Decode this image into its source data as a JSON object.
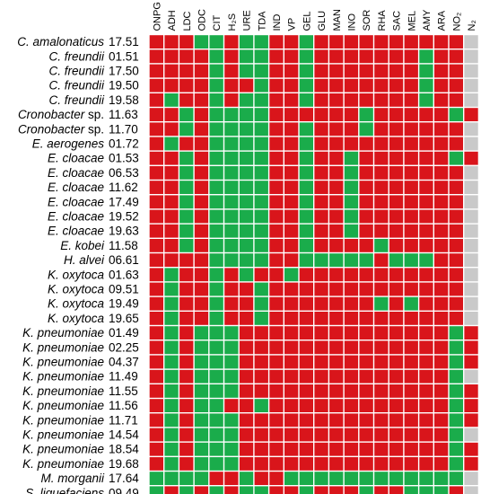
{
  "chart_data": {
    "type": "heatmap",
    "columns": [
      "ONPG",
      "ADH",
      "LDC",
      "ODC",
      "CIT",
      "H₂S",
      "URE",
      "TDA",
      "IND",
      "VP",
      "GEL",
      "GLU",
      "MAN",
      "INO",
      "SOR",
      "RHA",
      "SAC",
      "MEL",
      "AMY",
      "ARA",
      "NO₂",
      "N₂"
    ],
    "rows": [
      {
        "species": "C. amalonaticus",
        "code": "17.51"
      },
      {
        "species": "C. freundii",
        "code": "01.51"
      },
      {
        "species": "C. freundii",
        "code": "17.50"
      },
      {
        "species": "C. freundii",
        "code": "19.50"
      },
      {
        "species": "C. freundii",
        "code": "19.58"
      },
      {
        "species": "Cronobacter",
        "suffix": " sp.",
        "code": "11.63"
      },
      {
        "species": "Cronobacter",
        "suffix": " sp.",
        "code": "11.70"
      },
      {
        "species": "E. aerogenes",
        "code": "01.72"
      },
      {
        "species": "E. cloacae",
        "code": "01.53"
      },
      {
        "species": "E. cloacae",
        "code": "06.53"
      },
      {
        "species": "E. cloacae",
        "code": "11.62"
      },
      {
        "species": "E. cloacae",
        "code": "17.49"
      },
      {
        "species": "E. cloacae",
        "code": "19.52"
      },
      {
        "species": "E. cloacae",
        "code": "19.63"
      },
      {
        "species": "E. kobei",
        "code": "11.58"
      },
      {
        "species": "H. alvei",
        "code": "06.61"
      },
      {
        "species": "K. oxytoca",
        "code": "01.63"
      },
      {
        "species": "K. oxytoca",
        "code": "09.51"
      },
      {
        "species": "K. oxytoca",
        "code": "19.49"
      },
      {
        "species": "K. oxytoca",
        "code": "19.65"
      },
      {
        "species": "K. pneumoniae",
        "code": "01.49"
      },
      {
        "species": "K. pneumoniae",
        "code": "02.25"
      },
      {
        "species": "K. pneumoniae",
        "code": "04.37"
      },
      {
        "species": "K. pneumoniae",
        "code": "11.49"
      },
      {
        "species": "K. pneumoniae",
        "code": "11.55"
      },
      {
        "species": "K. pneumoniae",
        "code": "11.56"
      },
      {
        "species": "K. pneumoniae",
        "code": "11.71"
      },
      {
        "species": "K. pneumoniae",
        "code": "14.54"
      },
      {
        "species": "K. pneumoniae",
        "code": "18.54"
      },
      {
        "species": "K. pneumoniae",
        "code": "19.68"
      },
      {
        "species": "M. morganii",
        "code": "17.64"
      },
      {
        "species": "S. liquefaciens",
        "code": "09.49"
      }
    ],
    "legend_codes": {
      "R": "red",
      "G": "green",
      "X": "grey"
    },
    "colors": {
      "R": "#d9151b",
      "G": "#1aac4b",
      "X": "#c9c9c9"
    },
    "cells": [
      "RRRGGRGGRRGRRRRRRRRRRX",
      "RRRRGRGGRRGRRRRRRRGRRX",
      "RRRRGRGGRRGRRRRRRRGRRX",
      "RRRRGRRGRRGRRRRRRRGRRX",
      "RGRRGRGGRRGRRRRRRRGRRX",
      "RRGRGGGGRRRRRRGRRRRRGR",
      "RRGRGGGGRRGRRRGRRRRRRX",
      "RGRRGGGGRRGRRRRRRRRRRX",
      "RRGRGGGGRRGRRGRRRRRRGR",
      "RRGRGGGGRRGRRGRRRRRRRX",
      "RRGRGGGGRRGRRGRRRRRRRX",
      "RRGRGGGGRRGRRGRRRRRRRX",
      "RRGRGGGGRRGRRGRRRRRRRX",
      "RRGRGGGGRRGRRGRRRRRRRX",
      "RRGRGGGGRRGRRRRGRRRRRX",
      "RRRRGGGGRRGGGGGRGGGRRX",
      "RGRRGRGRRGRRRRRRRRRRRX",
      "RGRRGRRGRRRRRRRRRRRRRX",
      "RGRRGRRGRRRRRRRGRGRRRX",
      "RGRRGRRGRRRRRRRRRRRRRX",
      "RGRGGGRRRRRRRRRRRRRRGR",
      "RGRGGGRRRRRRRRRRRRRRGR",
      "RGRGGGRRRRRRRRRRRRRRGR",
      "RGRGGGRRRRRRRRRRRRRRGX",
      "RGRGGGRRRRRRRRRRRRRRGR",
      "RGRGGRRGRRRRRRRRRRRRGR",
      "RGRGGGRRRRRRRRRRRRRRGR",
      "RGRGGGRRRRRRRRRRRRRRGX",
      "RGRGGGRRRRRRRRRRRRRRGR",
      "RGRGGGRRRRRRRRRRRRRRGR",
      "GGGGRRGRRGGGGGGGGGGGGX",
      "GRGRGRGGRRGRRRGRRGGGRX"
    ]
  }
}
